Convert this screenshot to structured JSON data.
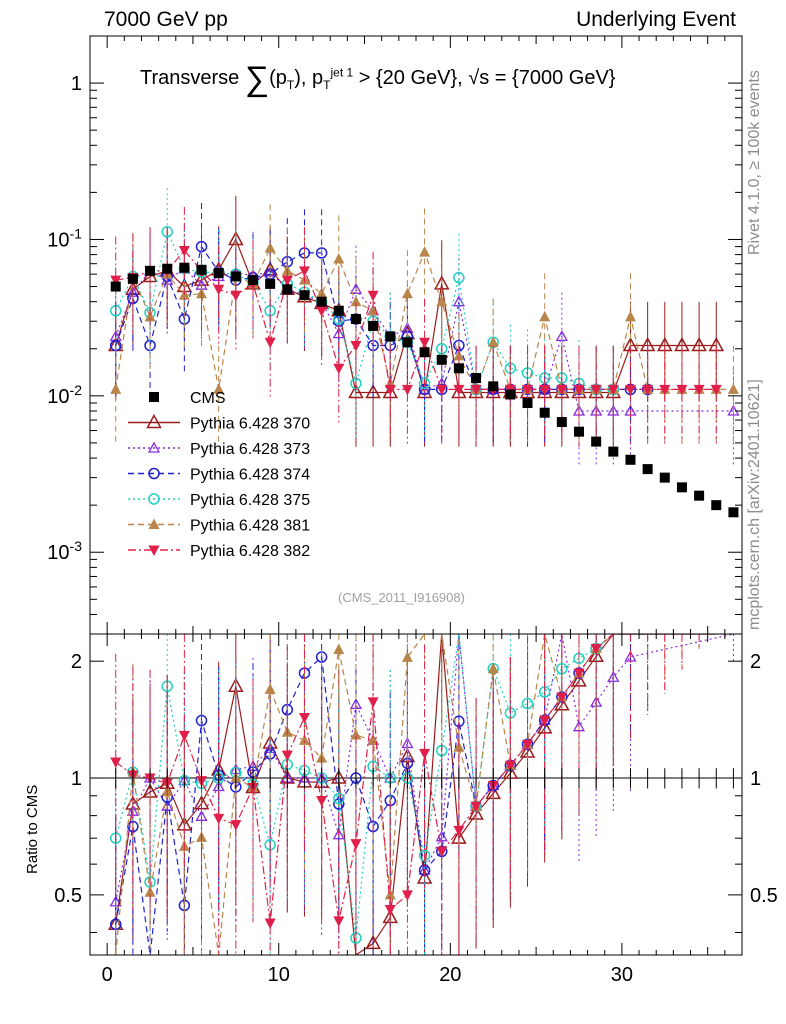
{
  "header": {
    "left": "7000 GeV pp",
    "right": "Underlying Event"
  },
  "title": {
    "prefix": "Transverse ",
    "sum": "∑",
    "pt_open": "(p",
    "pt_sub": "T",
    "mid": "), p",
    "pt2_sub": "T",
    "jet_sup": "jet 1",
    "suffix": " > {20 GeV}, √s = {7000 GeV}"
  },
  "side_labels": {
    "rivet": "Rivet 4.1.0, ≥ 100k events",
    "mcplots": "mcplots.cern.ch [arXiv:2401.10621]"
  },
  "watermark": "(CMS_2011_I916908)",
  "ratio_ylabel": "Ratio to CMS",
  "colors": {
    "CMS": "#000000",
    "p370": "#9b1b1b",
    "p373": "#8a2be2",
    "p374": "#1f1fd6",
    "p375": "#20d0c0",
    "p381": "#b8864b",
    "p382": "#e0204a"
  },
  "chart_data": {
    "type": "scatter",
    "title": "Transverse ∑(pT), pT jet 1 > {20 GeV}, √s = {7000 GeV}",
    "xlim": [
      -1,
      37
    ],
    "ylim_main": [
      0.0003,
      2
    ],
    "yscale_main": "log",
    "ylim_ratio": [
      0.35,
      2.35
    ],
    "yscale_ratio": "log",
    "x_ticks": [
      0,
      10,
      20,
      30
    ],
    "main_y_ticks": [
      "1",
      "10^-1",
      "10^-2",
      "10^-3"
    ],
    "ratio_y_ticks": [
      "0.5",
      "1",
      "2"
    ],
    "legend_position": "lower-left",
    "series": [
      {
        "name": "CMS",
        "key": "CMS",
        "marker": "square",
        "line": "none",
        "x": [
          0.5,
          1.5,
          2.5,
          3.5,
          4.5,
          5.5,
          6.5,
          7.5,
          8.5,
          9.5,
          10.5,
          11.5,
          12.5,
          13.5,
          14.5,
          15.5,
          16.5,
          17.5,
          18.5,
          19.5,
          20.5,
          21.5,
          22.5,
          23.5,
          24.5,
          25.5,
          26.5,
          27.5,
          28.5,
          29.5,
          30.5,
          31.5,
          32.5,
          33.5,
          34.5,
          35.5,
          36.5
        ],
        "y": [
          0.05,
          0.056,
          0.063,
          0.065,
          0.066,
          0.064,
          0.061,
          0.058,
          0.055,
          0.052,
          0.048,
          0.044,
          0.04,
          0.035,
          0.031,
          0.028,
          0.024,
          0.022,
          0.019,
          0.017,
          0.015,
          0.013,
          0.0115,
          0.0102,
          0.009,
          0.0078,
          0.0068,
          0.0059,
          0.0051,
          0.0044,
          0.0039,
          0.0034,
          0.003,
          0.0026,
          0.0023,
          0.002,
          0.0018
        ]
      },
      {
        "name": "Pythia 6.428 370",
        "key": "p370",
        "marker": "triangle-up-open",
        "line": "solid",
        "x": [
          0.5,
          1.5,
          2.5,
          3.5,
          4.5,
          5.5,
          6.5,
          7.5,
          8.5,
          9.5,
          10.5,
          11.5,
          12.5,
          13.5,
          14.5,
          15.5,
          16.5,
          17.5,
          18.5,
          19.5,
          20.5,
          21.5,
          22.5,
          23.5,
          24.5,
          25.5,
          26.5,
          27.5,
          28.5,
          29.5,
          30.5,
          31.5,
          32.5,
          33.5,
          34.5,
          35.5,
          36.5
        ],
        "y": [
          0.021,
          0.048,
          0.058,
          0.063,
          0.05,
          0.055,
          0.064,
          0.1,
          0.052,
          0.064,
          0.048,
          0.043,
          0.039,
          0.035,
          0.0105,
          0.0105,
          0.0105,
          0.025,
          0.0105,
          0.052,
          0.0105,
          0.0105,
          0.0105,
          0.0105,
          0.0105,
          0.0105,
          0.0105,
          0.0105,
          0.0105,
          0.0105,
          0.021,
          0.021,
          0.021,
          0.021,
          0.021,
          0.021,
          null
        ]
      },
      {
        "name": "Pythia 6.428 373",
        "key": "p373",
        "marker": "triangle-up-open-small",
        "line": "dotted",
        "x": [
          0.5,
          1.5,
          2.5,
          3.5,
          4.5,
          5.5,
          6.5,
          7.5,
          8.5,
          9.5,
          10.5,
          11.5,
          12.5,
          13.5,
          14.5,
          15.5,
          16.5,
          17.5,
          18.5,
          19.5,
          20.5,
          21.5,
          22.5,
          23.5,
          24.5,
          25.5,
          26.5,
          27.5,
          28.5,
          29.5,
          30.5,
          31.5,
          32.5,
          33.5,
          34.5,
          35.5,
          36.5
        ],
        "y": [
          0.024,
          0.046,
          0.063,
          0.055,
          0.065,
          0.051,
          0.058,
          0.061,
          0.059,
          0.062,
          0.048,
          0.044,
          0.04,
          0.025,
          0.048,
          0.035,
          0.024,
          0.027,
          0.011,
          0.012,
          0.04,
          0.011,
          0.011,
          0.011,
          0.011,
          0.011,
          0.024,
          0.008,
          0.008,
          0.008,
          0.008,
          null,
          null,
          null,
          null,
          null,
          0.008
        ]
      },
      {
        "name": "Pythia 6.428 374",
        "key": "p374",
        "marker": "circle-open",
        "line": "dashed",
        "x": [
          0.5,
          1.5,
          2.5,
          3.5,
          4.5,
          5.5,
          6.5,
          7.5,
          8.5,
          9.5,
          10.5,
          11.5,
          12.5,
          13.5,
          14.5,
          15.5,
          16.5,
          17.5,
          18.5,
          19.5,
          20.5,
          21.5,
          22.5,
          23.5,
          24.5,
          25.5,
          26.5,
          27.5,
          28.5,
          29.5,
          30.5,
          31.5
        ],
        "y": [
          0.021,
          0.042,
          0.021,
          0.058,
          0.031,
          0.09,
          0.062,
          0.055,
          0.057,
          0.06,
          0.072,
          0.082,
          0.082,
          0.03,
          0.031,
          0.021,
          0.021,
          0.024,
          0.011,
          0.011,
          0.021,
          0.011,
          0.011,
          0.011,
          0.011,
          0.011,
          0.011,
          0.011,
          0.011,
          0.011,
          0.011,
          0.011
        ]
      },
      {
        "name": "Pythia 6.428 375",
        "key": "p375",
        "marker": "circle-open-cyan",
        "line": "dotted",
        "x": [
          0.5,
          1.5,
          2.5,
          3.5,
          4.5,
          5.5,
          6.5,
          7.5,
          8.5,
          9.5,
          10.5,
          11.5,
          12.5,
          13.5,
          14.5,
          15.5,
          16.5,
          17.5,
          18.5,
          19.5,
          20.5,
          21.5,
          22.5,
          23.5,
          24.5,
          25.5,
          26.5,
          27.5,
          28.5,
          29.5
        ],
        "y": [
          0.035,
          0.058,
          0.034,
          0.112,
          0.065,
          0.062,
          0.061,
          0.06,
          0.053,
          0.035,
          0.052,
          0.046,
          0.04,
          0.031,
          0.012,
          0.03,
          0.024,
          0.022,
          0.012,
          0.02,
          0.057,
          0.011,
          0.022,
          0.015,
          0.014,
          0.013,
          0.013,
          0.012,
          0.011,
          0.011
        ]
      },
      {
        "name": "Pythia 6.428 381",
        "key": "p381",
        "marker": "triangle-up-filled",
        "line": "dashed",
        "x": [
          0.5,
          1.5,
          2.5,
          3.5,
          4.5,
          5.5,
          6.5,
          7.5,
          8.5,
          9.5,
          10.5,
          11.5,
          12.5,
          13.5,
          14.5,
          15.5,
          16.5,
          17.5,
          18.5,
          19.5,
          20.5,
          21.5,
          22.5,
          23.5,
          24.5,
          25.5,
          26.5,
          27.5,
          28.5,
          29.5,
          30.5,
          31.5,
          32.5,
          33.5,
          34.5,
          35.5,
          36.5
        ],
        "y": [
          0.011,
          0.058,
          0.032,
          0.06,
          0.044,
          0.045,
          0.011,
          0.058,
          0.052,
          0.088,
          0.063,
          0.055,
          0.045,
          0.075,
          0.04,
          0.035,
          0.012,
          0.045,
          0.083,
          0.04,
          0.018,
          0.011,
          0.022,
          0.011,
          0.011,
          0.032,
          0.011,
          0.011,
          0.011,
          0.011,
          0.032,
          0.011,
          0.011,
          0.011,
          0.011,
          0.011,
          0.011
        ]
      },
      {
        "name": "Pythia 6.428 382",
        "key": "p382",
        "marker": "triangle-down-filled",
        "line": "dashdot",
        "x": [
          0.5,
          1.5,
          2.5,
          3.5,
          4.5,
          5.5,
          6.5,
          7.5,
          8.5,
          9.5,
          10.5,
          11.5,
          12.5,
          13.5,
          14.5,
          15.5,
          16.5,
          17.5,
          18.5,
          19.5,
          20.5,
          21.5,
          22.5,
          23.5,
          24.5,
          25.5,
          26.5,
          27.5,
          28.5,
          29.5,
          30.5,
          31.5,
          32.5,
          33.5,
          34.5,
          35.5
        ],
        "y": [
          0.055,
          0.057,
          0.063,
          0.063,
          0.085,
          0.063,
          0.048,
          0.044,
          0.052,
          0.022,
          0.055,
          0.063,
          0.035,
          0.015,
          0.021,
          0.044,
          0.011,
          0.011,
          0.022,
          0.011,
          0.011,
          0.011,
          0.011,
          0.011,
          0.011,
          0.011,
          0.011,
          0.011,
          0.011,
          0.011,
          0.011,
          0.011,
          0.011,
          0.011,
          0.011,
          0.011
        ]
      }
    ]
  }
}
